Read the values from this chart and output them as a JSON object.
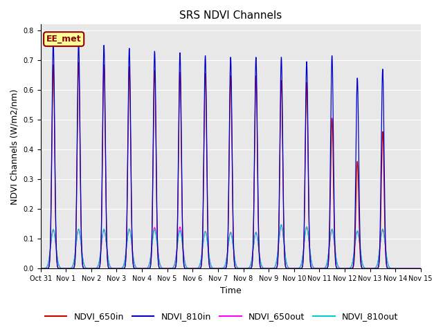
{
  "title": "SRS NDVI Channels",
  "ylabel": "NDVI Channels (W/m2/nm)",
  "xlabel": "Time",
  "annotation": "EE_met",
  "background_color": "#e8e8e8",
  "figure_bg": "#ffffff",
  "legend_entries": [
    "NDVI_650in",
    "NDVI_810in",
    "NDVI_650out",
    "NDVI_810out"
  ],
  "line_colors": [
    "#cc0000",
    "#0000cc",
    "#ff00ff",
    "#00cccc"
  ],
  "ylim": [
    0.0,
    0.82
  ],
  "num_days": 15,
  "peaks_810in": [
    0.76,
    0.76,
    0.75,
    0.74,
    0.73,
    0.725,
    0.715,
    0.71,
    0.71,
    0.71,
    0.695,
    0.715,
    0.64,
    0.67
  ],
  "peaks_650in": [
    0.685,
    0.692,
    0.685,
    0.678,
    0.665,
    0.66,
    0.655,
    0.648,
    0.648,
    0.632,
    0.625,
    0.505,
    0.36,
    0.46
  ],
  "peaks_650out": [
    0.13,
    0.132,
    0.13,
    0.133,
    0.138,
    0.14,
    0.125,
    0.122,
    0.122,
    0.145,
    0.14,
    0.13,
    0.125,
    0.13
  ],
  "peaks_810out": [
    0.132,
    0.133,
    0.133,
    0.132,
    0.13,
    0.127,
    0.124,
    0.12,
    0.12,
    0.148,
    0.14,
    0.133,
    0.127,
    0.133
  ],
  "peak_sigma_in": 0.055,
  "peak_sigma_out": 0.1,
  "points_per_day": 500,
  "title_fontsize": 11,
  "tick_label_fontsize": 7,
  "axis_label_fontsize": 9,
  "legend_fontsize": 9,
  "x_tick_labels": [
    "Oct 31",
    "Nov 1",
    "Nov 2",
    "Nov 3",
    "Nov 4",
    "Nov 5",
    "Nov 6",
    "Nov 7",
    "Nov 8",
    "Nov 9",
    "Nov 10",
    "Nov 11",
    "Nov 12",
    "Nov 13",
    "Nov 14",
    "Nov 15"
  ]
}
